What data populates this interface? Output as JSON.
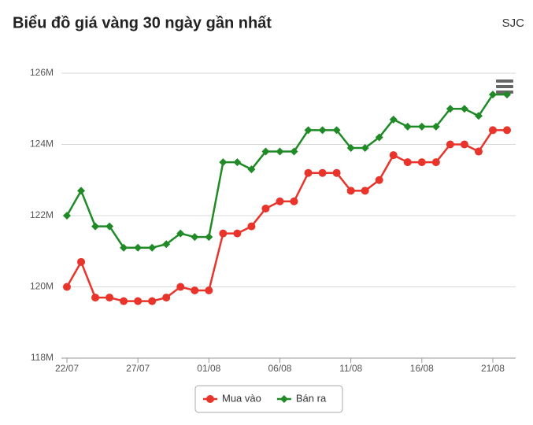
{
  "chart_data": {
    "type": "line",
    "title": "Biểu đồ giá vàng 30 ngày gần nhất",
    "subtitle": "SJC",
    "categories": [
      "22/07",
      null,
      null,
      null,
      null,
      "27/07",
      null,
      null,
      null,
      null,
      "01/08",
      null,
      null,
      null,
      null,
      "06/08",
      null,
      null,
      null,
      null,
      "11/08",
      null,
      null,
      null,
      null,
      "16/08",
      null,
      null,
      null,
      null,
      "21/08",
      null
    ],
    "series": [
      {
        "name": "Mua vào",
        "color": "#e8342a",
        "marker": "circle",
        "values": [
          120000000,
          120700000,
          119700000,
          119700000,
          119600000,
          119600000,
          119600000,
          119700000,
          120000000,
          119900000,
          119900000,
          121500000,
          121500000,
          121700000,
          122200000,
          122400000,
          122400000,
          123200000,
          123200000,
          123200000,
          122700000,
          122700000,
          123000000,
          123700000,
          123500000,
          123500000,
          123500000,
          124000000,
          124000000,
          123800000,
          124400000,
          124400000
        ]
      },
      {
        "name": "Bán ra",
        "color": "#1f8a26",
        "marker": "diamond",
        "values": [
          122000000,
          122700000,
          121700000,
          121700000,
          121100000,
          121100000,
          121100000,
          121200000,
          121500000,
          121400000,
          121400000,
          123500000,
          123500000,
          123300000,
          123800000,
          123800000,
          123800000,
          124400000,
          124400000,
          124400000,
          123900000,
          123900000,
          124200000,
          124700000,
          124500000,
          124500000,
          124500000,
          125000000,
          125000000,
          124800000,
          125400000,
          125400000
        ]
      }
    ],
    "ylim": [
      118000000,
      126000000
    ],
    "yticks": [
      {
        "value": 118000000,
        "label": "118M"
      },
      {
        "value": 120000000,
        "label": "120M"
      },
      {
        "value": 122000000,
        "label": "122M"
      },
      {
        "value": 124000000,
        "label": "124M"
      },
      {
        "value": 126000000,
        "label": "126M"
      }
    ],
    "grid": true,
    "legend": "bottom"
  }
}
